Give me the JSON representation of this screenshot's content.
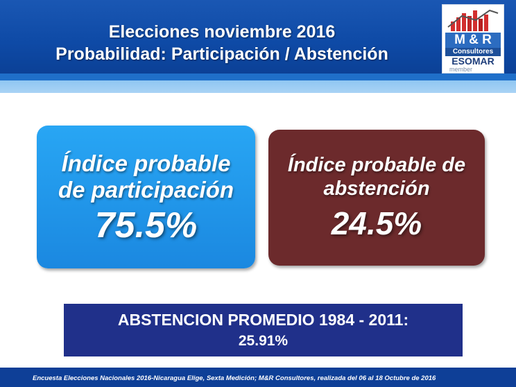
{
  "header": {
    "title_line1": "Elecciones noviembre 2016",
    "title_line2": "Probabilidad: Participación / Abstención"
  },
  "logo": {
    "brand": "M & R",
    "company": "Consultores",
    "association": "ESOMAR",
    "membership": "member",
    "colors": {
      "primary": "#2c6cc0",
      "secondary": "#1d4f99",
      "accent": "#d22f2f"
    }
  },
  "participation": {
    "label_line1": "Índice probable",
    "label_line2": "de participación",
    "value": "75.5%",
    "color": "#1b88e0"
  },
  "abstention": {
    "label_line1": "Índice probable de",
    "label_line2": "abstención",
    "value": "24.5%",
    "color": "#6c2a2c"
  },
  "average": {
    "line1": "ABSTENCION PROMEDIO 1984 - 2011:",
    "line2": "25.91%",
    "color": "#20308a"
  },
  "footer": {
    "text": "Encuesta Elecciones Nacionales 2016-Nicaragua Elige, Sexta Medición; M&R Consultores, realizada del 06 al 18 Octubre de 2016"
  }
}
